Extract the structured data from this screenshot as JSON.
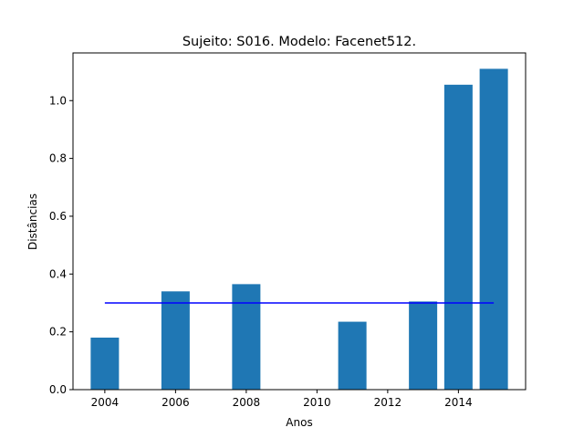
{
  "chart_data": {
    "type": "bar",
    "title": "Sujeito: S016. Modelo: Facenet512.",
    "xlabel": "Anos",
    "ylabel": "Distâncias",
    "x": [
      2004,
      2006,
      2008,
      2011,
      2013,
      2014,
      2015
    ],
    "values": [
      0.18,
      0.34,
      0.365,
      0.235,
      0.305,
      1.055,
      1.11
    ],
    "bar_color": "#1f77b4",
    "xticks": [
      "2004",
      "2006",
      "2008",
      "2010",
      "2012",
      "2014"
    ],
    "yticks": [
      "0.0",
      "0.2",
      "0.4",
      "0.6",
      "0.8",
      "1.0"
    ],
    "xlim": [
      2003.1,
      2015.9
    ],
    "ylim": [
      0,
      1.165
    ],
    "threshold": {
      "value": 0.3,
      "x_range": [
        2004,
        2015
      ],
      "color": "#0000ff"
    }
  }
}
